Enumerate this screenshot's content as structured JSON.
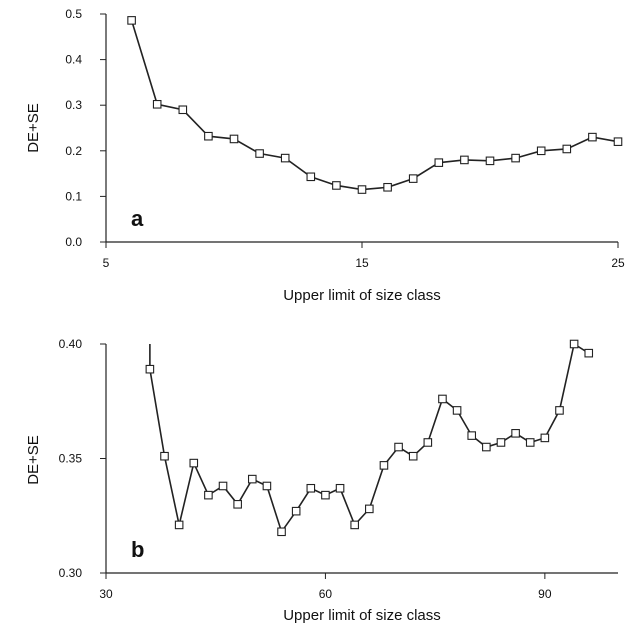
{
  "chart_data": [
    {
      "type": "line",
      "panel_label": "a",
      "xlabel": "Upper limit of size class",
      "ylabel": "DE+SE",
      "xlim": [
        5,
        25
      ],
      "ylim": [
        0.0,
        0.5
      ],
      "xticks": [
        5,
        15,
        25
      ],
      "yticks": [
        0.0,
        0.1,
        0.2,
        0.3,
        0.4,
        0.5
      ],
      "xtick_labels": [
        "5",
        "15",
        "25"
      ],
      "ytick_labels": [
        "0.0",
        "0.1",
        "0.2",
        "0.3",
        "0.4",
        "0.5"
      ],
      "grid": false,
      "marker": "open-square",
      "series": [
        {
          "x": [
            6,
            7,
            8,
            9,
            10,
            11,
            12,
            13,
            14,
            15,
            16,
            17,
            18,
            19,
            20,
            21,
            22,
            23,
            24,
            25
          ],
          "y": [
            0.486,
            0.302,
            0.29,
            0.232,
            0.226,
            0.194,
            0.184,
            0.143,
            0.124,
            0.115,
            0.12,
            0.139,
            0.174,
            0.18,
            0.178,
            0.184,
            0.2,
            0.204,
            0.23,
            0.22
          ]
        }
      ]
    },
    {
      "type": "line",
      "panel_label": "b",
      "xlabel": "Upper limit of size class",
      "ylabel": "DE+SE",
      "xlim": [
        30,
        100
      ],
      "ylim": [
        0.3,
        0.4
      ],
      "xticks": [
        30,
        60,
        90
      ],
      "yticks": [
        0.3,
        0.35,
        0.4
      ],
      "xtick_labels": [
        "30",
        "60",
        "90"
      ],
      "ytick_labels": [
        "0.30",
        "0.35",
        "0.40"
      ],
      "grid": false,
      "marker": "open-square",
      "series": [
        {
          "x": [
            36,
            38,
            40,
            42,
            44,
            46,
            48,
            50,
            52,
            54,
            56,
            58,
            60,
            62,
            64,
            66,
            68,
            70,
            72,
            74,
            76,
            78,
            80,
            82,
            84,
            86,
            88,
            90,
            92,
            94,
            96
          ],
          "y": [
            0.389,
            0.351,
            0.321,
            0.348,
            0.334,
            0.338,
            0.33,
            0.341,
            0.338,
            0.318,
            0.327,
            0.337,
            0.334,
            0.337,
            0.321,
            0.328,
            0.347,
            0.355,
            0.351,
            0.357,
            0.376,
            0.371,
            0.36,
            0.355,
            0.357,
            0.361,
            0.357,
            0.359,
            0.371,
            0.4,
            0.396
          ]
        }
      ],
      "line_enters_from_above_at_x": 36,
      "line_exits_above_at_x": 96
    }
  ]
}
